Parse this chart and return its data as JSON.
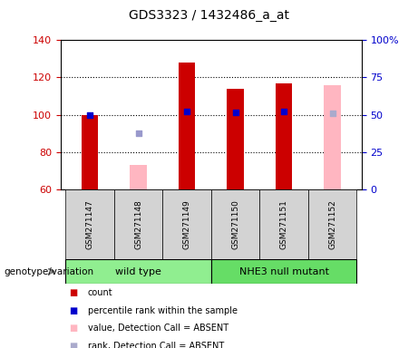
{
  "title": "GDS3323 / 1432486_a_at",
  "samples": [
    "GSM271147",
    "GSM271148",
    "GSM271149",
    "GSM271150",
    "GSM271151",
    "GSM271152"
  ],
  "ylim_left": [
    60,
    140
  ],
  "ylim_right": [
    0,
    100
  ],
  "yticks_left": [
    60,
    80,
    100,
    120,
    140
  ],
  "ytick_labels_right": [
    "0",
    "25",
    "50",
    "75",
    "100%"
  ],
  "yticks_right": [
    0,
    25,
    50,
    75,
    100
  ],
  "bar_bottom": 60,
  "red_bars_idx": [
    0,
    2,
    3,
    4
  ],
  "red_bars_vals": [
    100,
    128,
    114,
    117
  ],
  "pink_bars_idx": [
    1,
    5
  ],
  "pink_bars_vals": [
    73,
    116
  ],
  "blue_sq_idx": [
    0,
    2,
    3,
    4
  ],
  "blue_sq_vals": [
    100,
    102,
    101.5,
    102
  ],
  "lblue_sq_idx": [
    1
  ],
  "lblue_sq_vals": [
    90
  ],
  "lblue2_sq_idx": [
    5
  ],
  "lblue2_sq_vals": [
    101
  ],
  "red_color": "#cc0000",
  "pink_color": "#ffb6c1",
  "blue_color": "#0000cc",
  "lblue_color": "#9999cc",
  "lblue2_color": "#aaaacc",
  "left_axis_color": "#cc0000",
  "right_axis_color": "#0000cc",
  "bg_label": "#d3d3d3",
  "wt_color": "#90EE90",
  "mut_color": "#66DD66",
  "bar_width": 0.35,
  "grid_yticks": [
    80,
    100,
    120
  ],
  "legend_items": [
    {
      "label": "count",
      "color": "#cc0000"
    },
    {
      "label": "percentile rank within the sample",
      "color": "#0000cc"
    },
    {
      "label": "value, Detection Call = ABSENT",
      "color": "#ffb6c1"
    },
    {
      "label": "rank, Detection Call = ABSENT",
      "color": "#aaaacc"
    }
  ]
}
